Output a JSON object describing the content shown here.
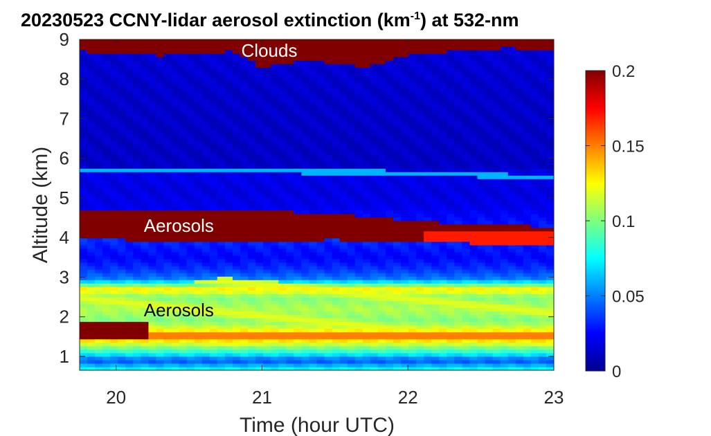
{
  "chart_data": {
    "type": "heatmap",
    "title_main": "20230523 CCNY-lidar aerosol extinction (km",
    "title_sup": "-1",
    "title_end": ") at 532-nm",
    "xlabel": "Time (hour UTC)",
    "ylabel": "Altitude (km)",
    "xlim": [
      19.75,
      23.0
    ],
    "ylim": [
      0.65,
      9.0
    ],
    "xticks": [
      20,
      21,
      22,
      23
    ],
    "yticks": [
      1,
      2,
      3,
      4,
      5,
      6,
      7,
      8,
      9
    ],
    "colorbar": {
      "clim": [
        0,
        0.2
      ],
      "ticks": [
        0,
        0.05,
        0.1,
        0.15,
        0.2
      ],
      "tick_labels": [
        "0",
        "0.05",
        "0.1",
        "0.15",
        "0.2"
      ],
      "colormap": "jet"
    },
    "annotations": [
      {
        "text": "Clouds",
        "x": 21.05,
        "y": 8.72,
        "color": "#ffffff"
      },
      {
        "text": "Aerosols",
        "x": 20.43,
        "y": 4.3,
        "color": "#ffffff"
      },
      {
        "text": "Aerosols",
        "x": 20.43,
        "y": 2.17,
        "color": "#000000"
      }
    ],
    "layers": [
      {
        "name": "cloud layer",
        "bottom": [
          8.7,
          8.6,
          8.7,
          8.3,
          8.5,
          8.3,
          8.6,
          8.7,
          8.8,
          8.7
        ],
        "top": 9.0,
        "x": [
          19.75,
          20.3,
          20.8,
          21.0,
          21.3,
          21.7,
          22.0,
          22.3,
          22.7,
          23.0
        ],
        "value": 0.2
      },
      {
        "name": "elevated aerosol layer",
        "bottom": [
          3.95,
          3.95,
          3.9,
          3.92,
          3.95,
          3.9,
          3.85,
          3.85,
          3.85
        ],
        "top": [
          4.67,
          4.68,
          4.67,
          4.68,
          4.6,
          4.45,
          4.3,
          4.3,
          4.28
        ],
        "x": [
          19.75,
          20.0,
          20.5,
          21.0,
          21.5,
          22.0,
          22.5,
          22.8,
          23.0
        ],
        "value": 0.2
      },
      {
        "name": "boundary layer aerosols",
        "bottom": 1.3,
        "top": [
          2.8,
          2.7,
          3.0,
          2.8,
          2.6,
          2.5
        ],
        "x": [
          19.75,
          20.3,
          20.7,
          21.5,
          22.3,
          23.0
        ],
        "value": 0.12
      },
      {
        "name": "thin layer near 5.7 km",
        "altitude": [
          5.72,
          5.7,
          5.68,
          5.62,
          5.5
        ],
        "x": [
          19.75,
          20.5,
          21.2,
          22.3,
          23.0
        ],
        "value": 0.06
      }
    ]
  }
}
